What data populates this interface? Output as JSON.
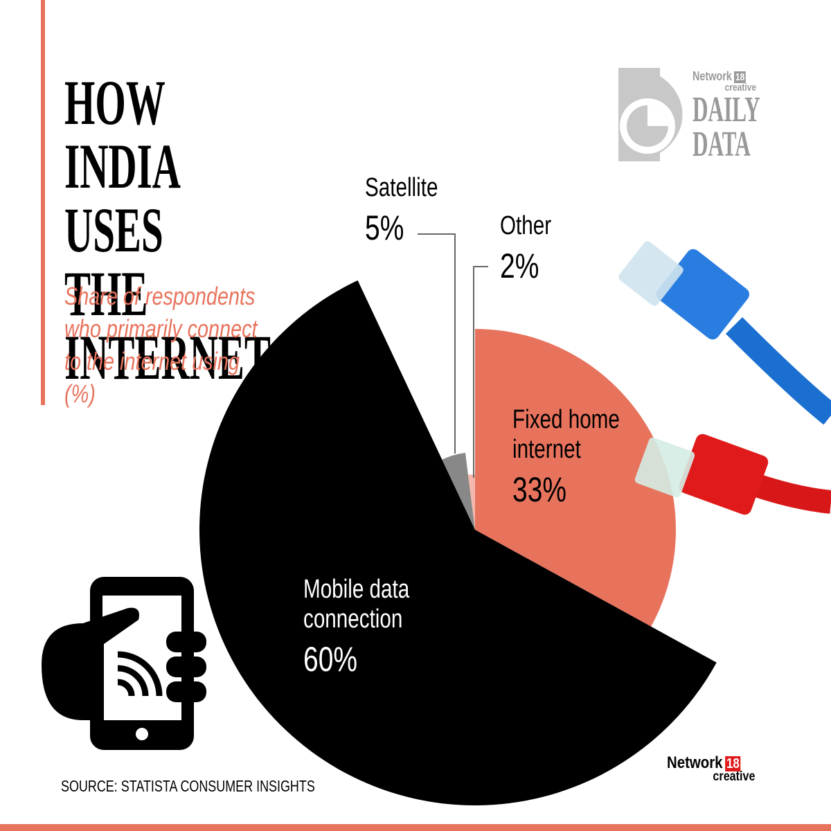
{
  "chart_data": {
    "type": "pie",
    "title": "HOW INDIA USES THE INTERNET",
    "subtitle": "Share of respondents who primarily connect to the internet using (%)",
    "source": "SOURCE: STATISTA CONSUMER INSIGHTS",
    "categories": [
      "Fixed home internet",
      "Mobile data connection",
      "Satellite",
      "Other"
    ],
    "values": [
      33,
      60,
      5,
      2
    ],
    "value_labels": [
      "33%",
      "60%",
      "5%",
      "2%"
    ],
    "colors": [
      "#e8735d",
      "#000000",
      "#888888",
      "#f3b8ab"
    ]
  },
  "branding": {
    "network": "Network",
    "number": "18",
    "creative": "creative",
    "daily": "DAILY",
    "data": "DATA"
  }
}
